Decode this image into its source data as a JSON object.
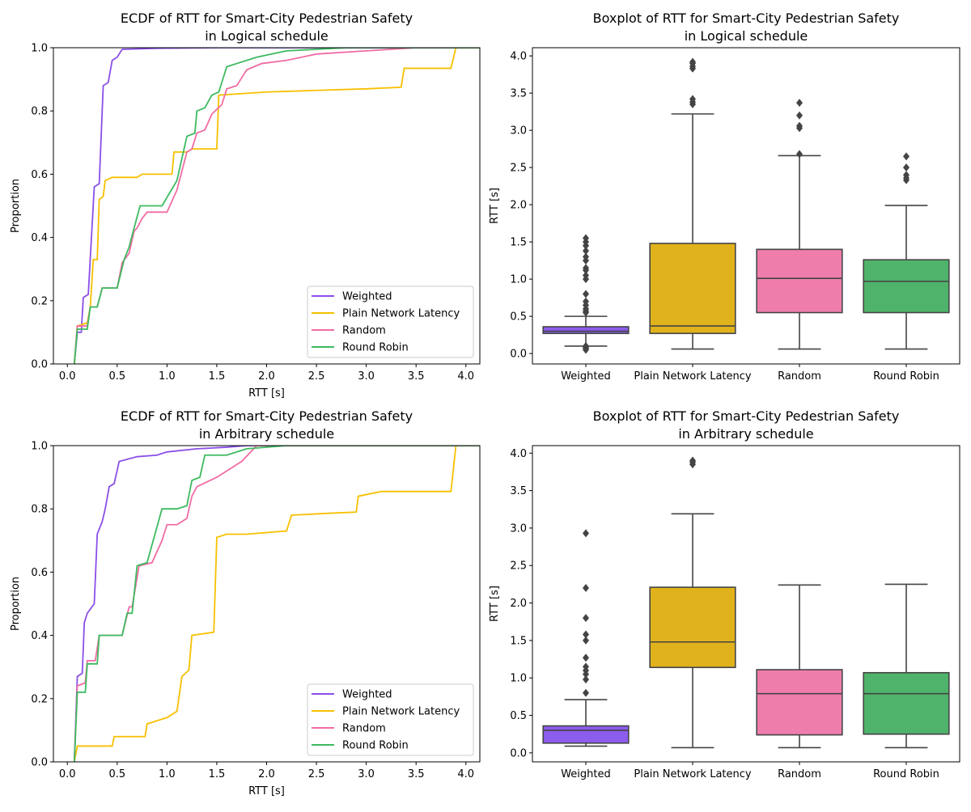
{
  "colors": {
    "Weighted": {
      "line": "#8a4fe8",
      "box": "#8c5cec"
    },
    "Plain Network Latency": {
      "line": "#f7c000",
      "box": "#e0b21c"
    },
    "Random": {
      "line": "#f06ca4",
      "box": "#ef7dab"
    },
    "Round Robin": {
      "line": "#3cba5f",
      "box": "#4fb36b"
    }
  },
  "chart_data": [
    {
      "type": "line",
      "title": "ECDF of RTT for Smart-City Pedestrian Safety\nin Logical schedule",
      "xlabel": "RTT [s]",
      "ylabel": "Proportion",
      "xlim": [
        -0.14,
        4.14
      ],
      "ylim": [
        0,
        1
      ],
      "xticks": [
        "0.0",
        "0.5",
        "1.0",
        "1.5",
        "2.0",
        "2.5",
        "3.0",
        "3.5",
        "4.0"
      ],
      "yticks": [
        "0.0",
        "0.2",
        "0.4",
        "0.6",
        "0.8",
        "1.0"
      ],
      "legend": "lower-right",
      "grid": false,
      "series": [
        {
          "name": "Weighted",
          "points": [
            [
              0.07,
              0
            ],
            [
              0.1,
              0.1
            ],
            [
              0.14,
              0.1
            ],
            [
              0.16,
              0.21
            ],
            [
              0.21,
              0.22
            ],
            [
              0.27,
              0.56
            ],
            [
              0.32,
              0.57
            ],
            [
              0.36,
              0.88
            ],
            [
              0.41,
              0.89
            ],
            [
              0.45,
              0.96
            ],
            [
              0.5,
              0.97
            ],
            [
              0.55,
              0.995
            ],
            [
              0.9,
              0.998
            ],
            [
              1.5,
              1.0
            ]
          ]
        },
        {
          "name": "Plain Network Latency",
          "points": [
            [
              0.07,
              0
            ],
            [
              0.1,
              0.12
            ],
            [
              0.2,
              0.13
            ],
            [
              0.23,
              0.18
            ],
            [
              0.26,
              0.33
            ],
            [
              0.3,
              0.33
            ],
            [
              0.32,
              0.52
            ],
            [
              0.36,
              0.53
            ],
            [
              0.38,
              0.58
            ],
            [
              0.45,
              0.59
            ],
            [
              0.7,
              0.59
            ],
            [
              0.75,
              0.6
            ],
            [
              1.05,
              0.6
            ],
            [
              1.07,
              0.67
            ],
            [
              1.2,
              0.67
            ],
            [
              1.25,
              0.68
            ],
            [
              1.5,
              0.68
            ],
            [
              1.52,
              0.85
            ],
            [
              2.0,
              0.86
            ],
            [
              2.5,
              0.865
            ],
            [
              3.0,
              0.87
            ],
            [
              3.35,
              0.875
            ],
            [
              3.38,
              0.935
            ],
            [
              3.85,
              0.935
            ],
            [
              3.9,
              1.0
            ]
          ]
        },
        {
          "name": "Random",
          "points": [
            [
              0.07,
              0
            ],
            [
              0.1,
              0.12
            ],
            [
              0.2,
              0.12
            ],
            [
              0.23,
              0.18
            ],
            [
              0.3,
              0.18
            ],
            [
              0.35,
              0.24
            ],
            [
              0.5,
              0.24
            ],
            [
              0.55,
              0.32
            ],
            [
              0.62,
              0.35
            ],
            [
              0.67,
              0.42
            ],
            [
              0.7,
              0.43
            ],
            [
              0.75,
              0.46
            ],
            [
              0.8,
              0.48
            ],
            [
              1.0,
              0.48
            ],
            [
              1.1,
              0.55
            ],
            [
              1.2,
              0.67
            ],
            [
              1.25,
              0.68
            ],
            [
              1.3,
              0.73
            ],
            [
              1.38,
              0.74
            ],
            [
              1.45,
              0.79
            ],
            [
              1.55,
              0.82
            ],
            [
              1.6,
              0.87
            ],
            [
              1.7,
              0.88
            ],
            [
              1.8,
              0.93
            ],
            [
              1.95,
              0.95
            ],
            [
              2.2,
              0.96
            ],
            [
              2.5,
              0.98
            ],
            [
              3.0,
              0.99
            ],
            [
              3.5,
              1.0
            ]
          ]
        },
        {
          "name": "Round Robin",
          "points": [
            [
              0.07,
              0
            ],
            [
              0.1,
              0.11
            ],
            [
              0.2,
              0.11
            ],
            [
              0.23,
              0.18
            ],
            [
              0.3,
              0.18
            ],
            [
              0.35,
              0.24
            ],
            [
              0.5,
              0.24
            ],
            [
              0.57,
              0.33
            ],
            [
              0.62,
              0.37
            ],
            [
              0.67,
              0.43
            ],
            [
              0.73,
              0.5
            ],
            [
              0.95,
              0.5
            ],
            [
              1.1,
              0.58
            ],
            [
              1.2,
              0.72
            ],
            [
              1.28,
              0.73
            ],
            [
              1.3,
              0.8
            ],
            [
              1.38,
              0.81
            ],
            [
              1.45,
              0.85
            ],
            [
              1.52,
              0.86
            ],
            [
              1.6,
              0.94
            ],
            [
              1.7,
              0.95
            ],
            [
              1.9,
              0.97
            ],
            [
              2.2,
              0.99
            ],
            [
              2.8,
              1.0
            ]
          ]
        }
      ]
    },
    {
      "type": "box",
      "title": "Boxplot of RTT for Smart-City Pedestrian Safety\nin Logical schedule",
      "xlabel": "",
      "ylabel": "RTT [s]",
      "ylim": [
        -0.14,
        4.11
      ],
      "yticks": [
        "0.0",
        "0.5",
        "1.0",
        "1.5",
        "2.0",
        "2.5",
        "3.0",
        "3.5",
        "4.0"
      ],
      "categories": [
        "Weighted",
        "Plain Network Latency",
        "Random",
        "Round Robin"
      ],
      "boxes": [
        {
          "whisker_low": 0.1,
          "q1": 0.27,
          "median": 0.3,
          "q3": 0.36,
          "whisker_high": 0.5,
          "outliers": [
            0.05,
            0.07,
            0.08,
            0.1,
            0.55,
            0.57,
            0.6,
            0.65,
            0.7,
            0.8,
            1.0,
            1.05,
            1.12,
            1.15,
            1.25,
            1.3,
            1.38,
            1.45,
            1.5,
            1.55
          ]
        },
        {
          "whisker_low": 0.06,
          "q1": 0.27,
          "median": 0.37,
          "q3": 1.48,
          "whisker_high": 3.22,
          "outliers": [
            3.35,
            3.38,
            3.42,
            3.83,
            3.86,
            3.9,
            3.92
          ]
        },
        {
          "whisker_low": 0.06,
          "q1": 0.55,
          "median": 1.01,
          "q3": 1.4,
          "whisker_high": 2.66,
          "outliers": [
            2.68,
            3.03,
            3.06,
            3.2,
            3.37
          ]
        },
        {
          "whisker_low": 0.06,
          "q1": 0.55,
          "median": 0.97,
          "q3": 1.26,
          "whisker_high": 1.99,
          "outliers": [
            2.33,
            2.36,
            2.4,
            2.5,
            2.65
          ]
        }
      ]
    },
    {
      "type": "line",
      "title": "ECDF of RTT for Smart-City Pedestrian Safety\nin Arbitrary schedule",
      "xlabel": "RTT [s]",
      "ylabel": "Proportion",
      "xlim": [
        -0.14,
        4.14
      ],
      "ylim": [
        0,
        1
      ],
      "xticks": [
        "0.0",
        "0.5",
        "1.0",
        "1.5",
        "2.0",
        "2.5",
        "3.0",
        "3.5",
        "4.0"
      ],
      "yticks": [
        "0.0",
        "0.2",
        "0.4",
        "0.6",
        "0.8",
        "1.0"
      ],
      "legend": "lower-right",
      "grid": false,
      "series": [
        {
          "name": "Weighted",
          "points": [
            [
              0.07,
              0
            ],
            [
              0.1,
              0.27
            ],
            [
              0.15,
              0.28
            ],
            [
              0.17,
              0.44
            ],
            [
              0.2,
              0.47
            ],
            [
              0.27,
              0.5
            ],
            [
              0.3,
              0.72
            ],
            [
              0.35,
              0.76
            ],
            [
              0.38,
              0.8
            ],
            [
              0.42,
              0.87
            ],
            [
              0.47,
              0.88
            ],
            [
              0.52,
              0.95
            ],
            [
              0.7,
              0.965
            ],
            [
              0.9,
              0.97
            ],
            [
              1.0,
              0.98
            ],
            [
              1.3,
              0.99
            ],
            [
              1.6,
              0.995
            ],
            [
              1.8,
              1.0
            ]
          ]
        },
        {
          "name": "Plain Network Latency",
          "points": [
            [
              0.07,
              0
            ],
            [
              0.1,
              0.05
            ],
            [
              0.45,
              0.05
            ],
            [
              0.47,
              0.08
            ],
            [
              0.78,
              0.08
            ],
            [
              0.8,
              0.12
            ],
            [
              0.9,
              0.13
            ],
            [
              1.0,
              0.14
            ],
            [
              1.1,
              0.16
            ],
            [
              1.15,
              0.27
            ],
            [
              1.22,
              0.29
            ],
            [
              1.25,
              0.4
            ],
            [
              1.47,
              0.41
            ],
            [
              1.5,
              0.71
            ],
            [
              1.6,
              0.72
            ],
            [
              1.8,
              0.72
            ],
            [
              2.2,
              0.73
            ],
            [
              2.25,
              0.78
            ],
            [
              2.55,
              0.785
            ],
            [
              2.9,
              0.79
            ],
            [
              2.92,
              0.84
            ],
            [
              3.15,
              0.855
            ],
            [
              3.85,
              0.855
            ],
            [
              3.9,
              1.0
            ]
          ]
        },
        {
          "name": "Random",
          "points": [
            [
              0.07,
              0
            ],
            [
              0.1,
              0.24
            ],
            [
              0.18,
              0.25
            ],
            [
              0.2,
              0.32
            ],
            [
              0.28,
              0.32
            ],
            [
              0.32,
              0.4
            ],
            [
              0.55,
              0.4
            ],
            [
              0.62,
              0.49
            ],
            [
              0.65,
              0.49
            ],
            [
              0.72,
              0.62
            ],
            [
              0.85,
              0.63
            ],
            [
              0.95,
              0.7
            ],
            [
              1.0,
              0.75
            ],
            [
              1.1,
              0.75
            ],
            [
              1.2,
              0.77
            ],
            [
              1.25,
              0.84
            ],
            [
              1.3,
              0.87
            ],
            [
              1.5,
              0.9
            ],
            [
              1.75,
              0.95
            ],
            [
              1.9,
              1.0
            ]
          ]
        },
        {
          "name": "Round Robin",
          "points": [
            [
              0.07,
              0
            ],
            [
              0.1,
              0.22
            ],
            [
              0.18,
              0.22
            ],
            [
              0.2,
              0.31
            ],
            [
              0.3,
              0.31
            ],
            [
              0.32,
              0.4
            ],
            [
              0.55,
              0.4
            ],
            [
              0.6,
              0.47
            ],
            [
              0.65,
              0.47
            ],
            [
              0.7,
              0.62
            ],
            [
              0.8,
              0.63
            ],
            [
              0.95,
              0.8
            ],
            [
              1.1,
              0.8
            ],
            [
              1.2,
              0.81
            ],
            [
              1.25,
              0.89
            ],
            [
              1.33,
              0.9
            ],
            [
              1.38,
              0.97
            ],
            [
              1.6,
              0.97
            ],
            [
              1.8,
              0.99
            ],
            [
              2.2,
              1.0
            ]
          ]
        }
      ]
    },
    {
      "type": "box",
      "title": "Boxplot of RTT for Smart-City Pedestrian Safety\nin Arbitrary schedule",
      "xlabel": "",
      "ylabel": "RTT [s]",
      "ylim": [
        -0.12,
        4.1
      ],
      "yticks": [
        "0.0",
        "0.5",
        "1.0",
        "1.5",
        "2.0",
        "2.5",
        "3.0",
        "3.5",
        "4.0"
      ],
      "categories": [
        "Weighted",
        "Plain Network Latency",
        "Random",
        "Round Robin"
      ],
      "boxes": [
        {
          "whisker_low": 0.09,
          "q1": 0.13,
          "median": 0.3,
          "q3": 0.36,
          "whisker_high": 0.71,
          "outliers": [
            0.8,
            0.98,
            1.05,
            1.1,
            1.15,
            1.27,
            1.5,
            1.58,
            1.8,
            2.2,
            2.93
          ]
        },
        {
          "whisker_low": 0.07,
          "q1": 1.14,
          "median": 1.48,
          "q3": 2.21,
          "whisker_high": 3.19,
          "outliers": [
            3.85,
            3.88,
            3.9
          ]
        },
        {
          "whisker_low": 0.07,
          "q1": 0.24,
          "median": 0.79,
          "q3": 1.11,
          "whisker_high": 2.24,
          "outliers": []
        },
        {
          "whisker_low": 0.07,
          "q1": 0.25,
          "median": 0.79,
          "q3": 1.07,
          "whisker_high": 2.25,
          "outliers": []
        }
      ]
    }
  ]
}
